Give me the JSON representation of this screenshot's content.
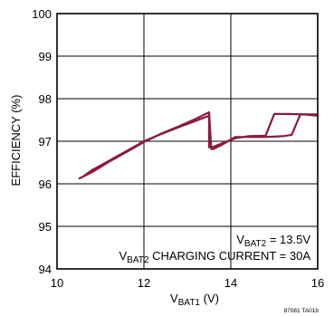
{
  "chart_data": {
    "type": "line",
    "x_label": {
      "main": "V",
      "sub": "BAT1",
      "unit": " (V)"
    },
    "y_label": "EFFICIENCY (%)",
    "xlim": [
      10,
      16
    ],
    "ylim": [
      94,
      100
    ],
    "x_ticks": [
      10,
      12,
      14,
      16
    ],
    "y_ticks": [
      94,
      95,
      96,
      97,
      98,
      99,
      100
    ],
    "grid": true,
    "annotations": [
      {
        "main": "V",
        "sub": "BAT2",
        "rest": " = 13.5V"
      },
      {
        "main": "V",
        "sub": "BAT2",
        "rest": " CHARGING CURRENT = 30A"
      }
    ],
    "figure_id": "87081 TA01b",
    "series": [
      {
        "color": "#8b1a3a",
        "x": [
          10.6,
          10.8,
          11.0,
          11.3,
          11.6,
          12.0,
          12.4,
          12.8,
          13.2,
          13.5,
          13.5,
          13.6,
          13.8,
          14.1,
          14.4,
          14.8,
          15.0,
          15.3,
          15.7,
          16.0
        ],
        "y": [
          96.17,
          96.32,
          96.43,
          96.6,
          96.77,
          97.0,
          97.17,
          97.33,
          97.48,
          97.6,
          96.86,
          96.87,
          96.95,
          97.07,
          97.12,
          97.13,
          97.64,
          97.64,
          97.63,
          97.6
        ]
      },
      {
        "color": "#8b1a3a",
        "x": [
          10.5,
          10.8,
          11.2,
          11.6,
          12.0,
          12.4,
          12.8,
          13.2,
          13.5,
          13.55,
          13.6,
          13.8,
          14.1,
          14.4,
          14.8,
          15.2,
          15.4,
          15.6,
          16.0
        ],
        "y": [
          96.12,
          96.27,
          96.52,
          96.75,
          96.98,
          97.18,
          97.35,
          97.53,
          97.68,
          96.82,
          96.82,
          96.92,
          97.1,
          97.1,
          97.1,
          97.12,
          97.15,
          97.63,
          97.63
        ]
      }
    ]
  }
}
